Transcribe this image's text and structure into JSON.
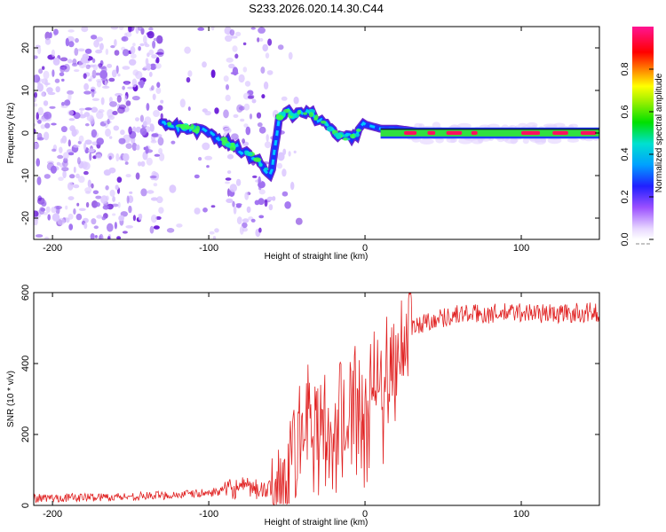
{
  "title": "S233.2026.020.14.30.C44",
  "chart_data": [
    {
      "type": "heatmap",
      "name": "spectrogram",
      "xlabel": "Height of straight line (km)",
      "ylabel": "Frequency (Hz)",
      "xlim": [
        -212,
        150
      ],
      "ylim": [
        -25,
        25
      ],
      "x_ticks": [
        -200,
        -100,
        0,
        100
      ],
      "x_tick_labels": [
        "-200",
        "-100",
        "0",
        "100"
      ],
      "y_ticks": [
        -20,
        -10,
        0,
        10,
        20
      ],
      "y_tick_labels": [
        "-20",
        "-10",
        "0",
        "10",
        "20"
      ],
      "colorbar": {
        "label": "Normalized spectral amplitude",
        "range": [
          0,
          1
        ],
        "ticks": [
          0.0,
          0.2,
          0.4,
          0.6,
          0.8
        ],
        "tick_labels": [
          "0.0",
          "0.2",
          "0.4",
          "0.6",
          "0.8"
        ]
      },
      "ridge": {
        "description": "dominant frequency track",
        "x": [
          -130,
          -110,
          -100,
          -90,
          -80,
          -70,
          -60,
          -55,
          -50,
          -45,
          -40,
          -35,
          -30,
          -25,
          -20,
          -15,
          -10,
          -5,
          0,
          10,
          20,
          30,
          40,
          60,
          80,
          100,
          120,
          150
        ],
        "y": [
          2,
          1,
          0,
          -2,
          -4,
          -6,
          -10,
          4,
          5,
          4,
          5,
          5,
          3,
          2,
          0,
          -1,
          -1,
          0,
          2,
          1,
          1,
          0.5,
          0,
          0,
          0,
          0,
          0,
          0
        ]
      }
    },
    {
      "type": "line",
      "name": "snr",
      "xlabel": "Height of straight line (km)",
      "ylabel": "SNR (10 * v/v)",
      "xlim": [
        -212,
        150
      ],
      "ylim": [
        0,
        600
      ],
      "x_ticks": [
        -200,
        -100,
        0,
        100
      ],
      "x_tick_labels": [
        "-200",
        "-100",
        "0",
        "100"
      ],
      "y_ticks": [
        0,
        200,
        400,
        600
      ],
      "y_tick_labels": [
        "0",
        "200",
        "400",
        "600"
      ],
      "line_color": "#e02020",
      "envelope": {
        "x": [
          -212,
          -150,
          -120,
          -100,
          -80,
          -70,
          -60,
          -50,
          -45,
          -40,
          -35,
          -30,
          -25,
          -20,
          -10,
          0,
          5,
          10,
          15,
          20,
          25,
          30,
          40,
          50,
          60,
          80,
          100,
          120,
          150
        ],
        "y": [
          20,
          25,
          30,
          35,
          50,
          45,
          40,
          60,
          150,
          250,
          280,
          260,
          240,
          260,
          300,
          330,
          360,
          400,
          400,
          430,
          470,
          500,
          520,
          530,
          540,
          540,
          545,
          540,
          545
        ]
      }
    }
  ]
}
